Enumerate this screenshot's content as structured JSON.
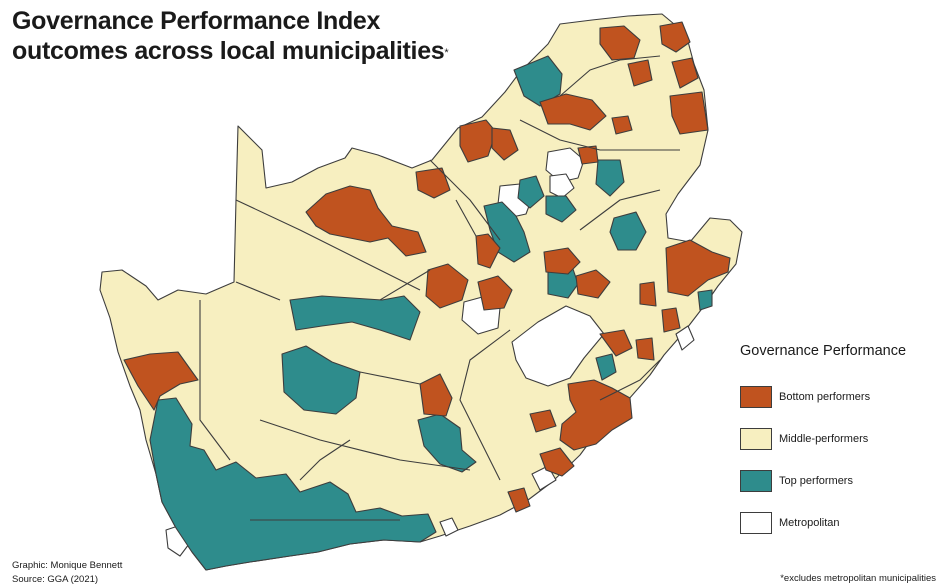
{
  "title": {
    "line1": "Governance Performance Index",
    "line2": "outcomes across local municipalities",
    "marker": "*"
  },
  "legend": {
    "title": "Governance Performance",
    "items": [
      {
        "label": "Bottom performers",
        "color": "#c0531f"
      },
      {
        "label": "Middle-performers",
        "color": "#f7efc0"
      },
      {
        "label": "Top performers",
        "color": "#2e8c8c"
      },
      {
        "label": "Metropolitan",
        "color": "#ffffff"
      }
    ]
  },
  "credits": {
    "graphic": "Graphic: Monique Bennett",
    "source": "Source: GGA (2021)"
  },
  "footnote": "*excludes metropolitan municipalities",
  "map": {
    "region": "South Africa",
    "base_color": "#f7efc0",
    "border_color": "#3d3d3d"
  }
}
